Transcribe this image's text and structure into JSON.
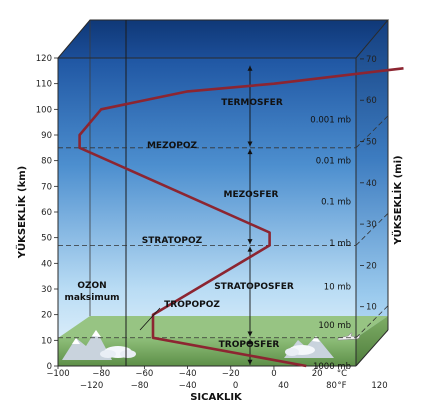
{
  "diagram": {
    "left_axis_title": "YÜKSEKLİK (km)",
    "right_axis_title": "YÜKSEKLİK (mi)",
    "bottom_axis_title": "SICAKLIK",
    "km_ticks": [
      "0",
      "10",
      "20",
      "30",
      "40",
      "50",
      "60",
      "70",
      "80",
      "90",
      "100",
      "110",
      "120"
    ],
    "mi_ticks": [
      "10",
      "20",
      "30",
      "40",
      "50",
      "60",
      "70"
    ],
    "celsius_ticks": [
      "−100",
      "−80",
      "−60",
      "−40",
      "−20",
      "0",
      "20"
    ],
    "celsius_unit": "°C",
    "fahrenheit_ticks": [
      "−120",
      "−80",
      "−40",
      "0",
      "40",
      "80",
      "120"
    ],
    "fahrenheit_unit": "°F",
    "layers": {
      "termosfer": "TERMOSFER",
      "mezopoz": "MEZOPOZ",
      "mezosfer": "MEZOSFER",
      "stratopoz": "STRATOPOZ",
      "stratosfer": "STRATOPOSFER",
      "tropopoz": "TROPOPOZ",
      "troposfer": "TROPOSFER"
    },
    "ozone_label_1": "OZON",
    "ozone_label_2": "maksimum",
    "pressure_labels": [
      "1000 mb",
      "100 mb",
      "10 mb",
      "1 mb",
      "0.1 mb",
      "0.01 mb",
      "0.001 mb"
    ],
    "temperature_profile_c_vs_km": [
      [
        15,
        0
      ],
      [
        -56,
        11
      ],
      [
        -56,
        20
      ],
      [
        -2,
        47
      ],
      [
        -2,
        52
      ],
      [
        -90,
        85
      ],
      [
        -90,
        90
      ],
      [
        -80,
        100
      ],
      [
        -40,
        107
      ],
      [
        0,
        110
      ],
      [
        60,
        116
      ]
    ],
    "colors": {
      "sky_top": "#1f56a3",
      "sky_bottom": "#eaf5fd",
      "ground": "#6e9f57",
      "profile_line": "#8c2531"
    }
  }
}
